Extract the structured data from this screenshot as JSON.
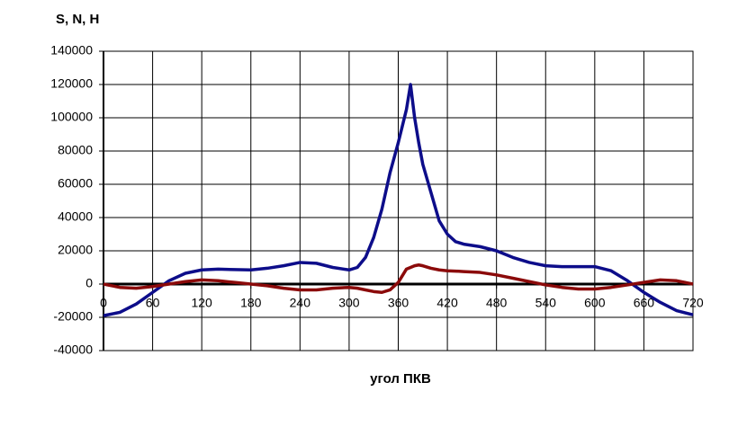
{
  "chart_data": {
    "type": "line",
    "title": "S, N, H",
    "x_label": "угол ПКВ",
    "x": [
      0,
      20,
      40,
      60,
      80,
      100,
      120,
      140,
      160,
      180,
      200,
      220,
      240,
      260,
      280,
      300,
      310,
      320,
      330,
      340,
      350,
      360,
      370,
      375,
      380,
      385,
      390,
      400,
      410,
      420,
      430,
      440,
      460,
      480,
      500,
      520,
      540,
      560,
      580,
      600,
      620,
      640,
      660,
      680,
      700,
      720
    ],
    "series": [
      {
        "color": "#0d0d8a",
        "values": [
          -19000,
          -17000,
          -12000,
          -5000,
          2000,
          6500,
          8500,
          9000,
          8700,
          8500,
          9500,
          11000,
          13000,
          12500,
          10000,
          8500,
          10000,
          16000,
          28000,
          45000,
          67000,
          85000,
          105000,
          120000,
          100000,
          85000,
          72000,
          55000,
          38000,
          30000,
          25500,
          24000,
          22500,
          20000,
          16000,
          13000,
          11000,
          10500,
          10500,
          10500,
          8000,
          2000,
          -5000,
          -11000,
          -16000,
          -18500
        ]
      },
      {
        "color": "#8b0a0a",
        "values": [
          0,
          -2000,
          -2500,
          -1500,
          0,
          1500,
          2500,
          2000,
          1000,
          0,
          -1000,
          -2500,
          -3500,
          -3500,
          -2500,
          -2000,
          -2500,
          -3500,
          -4500,
          -5000,
          -3500,
          1000,
          9000,
          10000,
          11000,
          11500,
          11000,
          9500,
          8500,
          8000,
          7800,
          7500,
          7000,
          5500,
          3500,
          1500,
          -500,
          -2000,
          -3000,
          -3000,
          -2000,
          -500,
          1000,
          2500,
          2000,
          0
        ]
      }
    ],
    "xlim": [
      0,
      720
    ],
    "xticks": [
      0,
      60,
      120,
      180,
      240,
      300,
      360,
      420,
      480,
      540,
      600,
      660,
      720
    ],
    "ylim": [
      -40000,
      140000
    ],
    "yticks": [
      -40000,
      -20000,
      0,
      20000,
      40000,
      60000,
      80000,
      100000,
      120000,
      140000
    ],
    "grid": true
  }
}
